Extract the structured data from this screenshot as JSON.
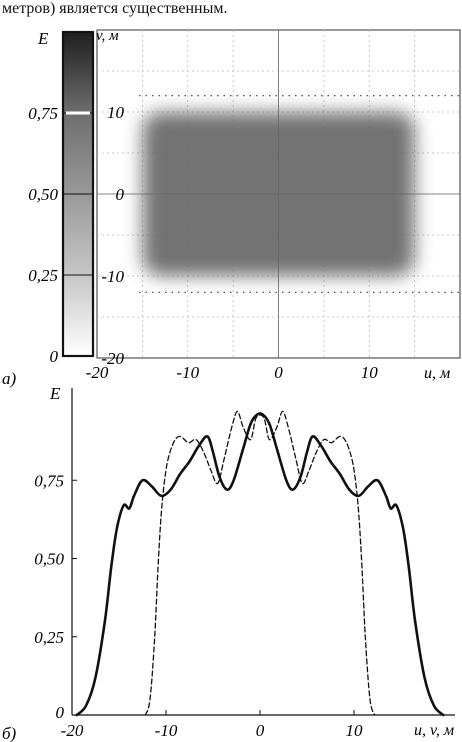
{
  "caption_top": "метров) является существенным.",
  "panel_a": {
    "label": "а)",
    "colorbar": {
      "label": "E",
      "ticks": [
        {
          "value": 0,
          "text": "0"
        },
        {
          "value": 0.25,
          "text": "0,25"
        },
        {
          "value": 0.5,
          "text": "0,50"
        },
        {
          "value": 0.75,
          "text": "0,75"
        }
      ],
      "marker_value": 0.75
    },
    "map": {
      "xlabel": "u, м",
      "ylabel": "v, м",
      "x_ticks": [
        {
          "value": -20,
          "text": "-20"
        },
        {
          "value": -10,
          "text": "-10"
        },
        {
          "value": 0,
          "text": "0"
        },
        {
          "value": 10,
          "text": "10"
        }
      ],
      "y_ticks": [
        {
          "value": 10,
          "text": "10"
        },
        {
          "value": 0,
          "text": "0"
        },
        {
          "value": -10,
          "text": "-10"
        },
        {
          "value": -20,
          "text": "-20"
        }
      ],
      "xlim": [
        -20,
        20
      ],
      "ylim": [
        -20,
        20
      ],
      "dotted_levels": [
        12,
        -12
      ],
      "field": {
        "u_range": [
          -15,
          15
        ],
        "v_range": [
          -10,
          10
        ],
        "level": 0.75,
        "color": "#6c6c6c"
      }
    }
  },
  "chart_data": {
    "type": "line",
    "label": "б)",
    "xlabel": "u, v, м",
    "ylabel": "E",
    "xlim": [
      -20,
      20
    ],
    "ylim": [
      0,
      1
    ],
    "x_ticks": [
      {
        "value": -20,
        "text": "-20"
      },
      {
        "value": -10,
        "text": "-10"
      },
      {
        "value": 0,
        "text": "0"
      },
      {
        "value": 10,
        "text": "10"
      }
    ],
    "y_ticks": [
      {
        "value": 0.25,
        "text": "0,25"
      },
      {
        "value": 0.5,
        "text": "0,50"
      },
      {
        "value": 0.75,
        "text": "0,75"
      }
    ],
    "series": [
      {
        "style": "solid",
        "points": [
          [
            -19.5,
            0.0
          ],
          [
            -18.5,
            0.03
          ],
          [
            -17.5,
            0.12
          ],
          [
            -16.5,
            0.3
          ],
          [
            -15.8,
            0.48
          ],
          [
            -15.2,
            0.6
          ],
          [
            -14.5,
            0.67
          ],
          [
            -13.9,
            0.66
          ],
          [
            -13.4,
            0.7
          ],
          [
            -12.5,
            0.75
          ],
          [
            -11.5,
            0.73
          ],
          [
            -10.5,
            0.7
          ],
          [
            -9.5,
            0.72
          ],
          [
            -8.5,
            0.77
          ],
          [
            -7.5,
            0.81
          ],
          [
            -6.5,
            0.86
          ],
          [
            -5.6,
            0.89
          ],
          [
            -5.0,
            0.84
          ],
          [
            -4.3,
            0.76
          ],
          [
            -3.5,
            0.72
          ],
          [
            -2.8,
            0.75
          ],
          [
            -1.8,
            0.85
          ],
          [
            -1.0,
            0.93
          ],
          [
            -0.3,
            0.96
          ],
          [
            0.3,
            0.96
          ],
          [
            1.0,
            0.93
          ],
          [
            1.8,
            0.85
          ],
          [
            2.8,
            0.75
          ],
          [
            3.5,
            0.72
          ],
          [
            4.3,
            0.76
          ],
          [
            5.0,
            0.84
          ],
          [
            5.6,
            0.89
          ],
          [
            6.5,
            0.86
          ],
          [
            7.5,
            0.81
          ],
          [
            8.5,
            0.77
          ],
          [
            9.5,
            0.72
          ],
          [
            10.5,
            0.7
          ],
          [
            11.5,
            0.73
          ],
          [
            12.5,
            0.75
          ],
          [
            13.4,
            0.7
          ],
          [
            13.9,
            0.66
          ],
          [
            14.5,
            0.67
          ],
          [
            15.2,
            0.6
          ],
          [
            15.8,
            0.48
          ],
          [
            16.5,
            0.3
          ],
          [
            17.5,
            0.12
          ],
          [
            18.5,
            0.03
          ],
          [
            19.5,
            0.0
          ]
        ]
      },
      {
        "style": "dashed",
        "points": [
          [
            -12.2,
            0.0
          ],
          [
            -11.7,
            0.05
          ],
          [
            -11.2,
            0.25
          ],
          [
            -10.8,
            0.5
          ],
          [
            -10.4,
            0.68
          ],
          [
            -9.9,
            0.8
          ],
          [
            -9.2,
            0.87
          ],
          [
            -8.5,
            0.89
          ],
          [
            -7.6,
            0.87
          ],
          [
            -6.8,
            0.88
          ],
          [
            -6.0,
            0.84
          ],
          [
            -5.2,
            0.78
          ],
          [
            -4.5,
            0.74
          ],
          [
            -3.8,
            0.82
          ],
          [
            -3.0,
            0.92
          ],
          [
            -2.4,
            0.97
          ],
          [
            -1.8,
            0.92
          ],
          [
            -1.0,
            0.88
          ],
          [
            -0.4,
            0.95
          ],
          [
            0.4,
            0.95
          ],
          [
            1.0,
            0.88
          ],
          [
            1.8,
            0.92
          ],
          [
            2.4,
            0.97
          ],
          [
            3.0,
            0.92
          ],
          [
            3.8,
            0.82
          ],
          [
            4.5,
            0.74
          ],
          [
            5.2,
            0.78
          ],
          [
            6.0,
            0.84
          ],
          [
            6.8,
            0.88
          ],
          [
            7.6,
            0.87
          ],
          [
            8.5,
            0.89
          ],
          [
            9.2,
            0.87
          ],
          [
            9.9,
            0.8
          ],
          [
            10.4,
            0.68
          ],
          [
            10.8,
            0.5
          ],
          [
            11.2,
            0.25
          ],
          [
            11.7,
            0.05
          ],
          [
            12.2,
            0.0
          ]
        ]
      }
    ]
  }
}
